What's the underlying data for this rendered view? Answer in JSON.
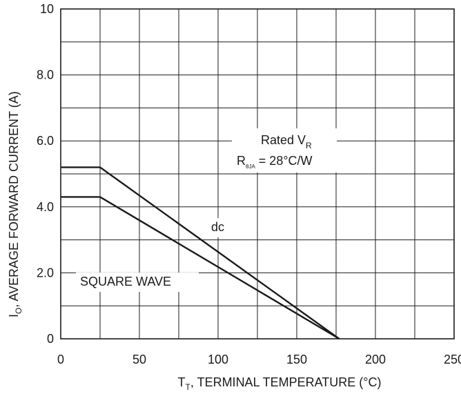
{
  "chart_data": {
    "type": "line",
    "title": "",
    "xlabel": {
      "symbol": "T",
      "subscript": "T",
      "text": ", TERMINAL TEMPERATURE (°C)"
    },
    "ylabel": {
      "symbol": "I",
      "subscript": "O",
      "text": ", AVERAGE FORWARD CURRENT (A)"
    },
    "xlim": [
      0,
      250
    ],
    "ylim": [
      0,
      10
    ],
    "grid": true,
    "x_ticks": [
      {
        "value": 0,
        "label": "0"
      },
      {
        "value": 50,
        "label": "50"
      },
      {
        "value": 100,
        "label": "100"
      },
      {
        "value": 150,
        "label": "150"
      },
      {
        "value": 200,
        "label": "200"
      },
      {
        "value": 250,
        "label": "250"
      }
    ],
    "y_ticks": [
      {
        "value": 0,
        "label": "0"
      },
      {
        "value": 2,
        "label": "2.0"
      },
      {
        "value": 4,
        "label": "4.0"
      },
      {
        "value": 6,
        "label": "6.0"
      },
      {
        "value": 8,
        "label": "8.0"
      },
      {
        "value": 10,
        "label": "10"
      }
    ],
    "x_gridlines": [
      0,
      25,
      50,
      75,
      100,
      125,
      150,
      175,
      200,
      225,
      250
    ],
    "y_gridlines": [
      0,
      1,
      2,
      3,
      4,
      5,
      6,
      7,
      8,
      9,
      10
    ],
    "series": [
      {
        "name": "dc",
        "color": "#1a1a1a",
        "x": [
          0,
          25,
          177
        ],
        "y": [
          5.2,
          5.2,
          0
        ]
      },
      {
        "name": "SQUARE WAVE",
        "color": "#1a1a1a",
        "x": [
          0,
          25,
          177
        ],
        "y": [
          4.3,
          4.3,
          0
        ]
      }
    ],
    "annotations": {
      "rated_line1": {
        "text": "Rated V",
        "subscript": "R"
      },
      "rated_line2": {
        "symbol": "R",
        "subscript": "θJA",
        "text": " = 28°C/W"
      },
      "dc_label": "dc",
      "square_label": "SQUARE WAVE"
    }
  }
}
